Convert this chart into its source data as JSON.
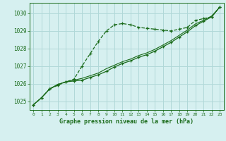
{
  "x": [
    0,
    1,
    2,
    3,
    4,
    5,
    6,
    7,
    8,
    9,
    10,
    11,
    12,
    13,
    14,
    15,
    16,
    17,
    18,
    19,
    20,
    21,
    22,
    23
  ],
  "series1": [
    1024.8,
    1025.2,
    1025.7,
    1025.9,
    1026.1,
    1026.25,
    1027.0,
    1027.7,
    1028.4,
    1029.0,
    1029.35,
    1029.42,
    1029.35,
    1029.2,
    1029.15,
    1029.1,
    1029.05,
    1029.0,
    1029.1,
    1029.2,
    1029.6,
    1029.7,
    1029.8,
    1030.35
  ],
  "series2": [
    1024.8,
    1025.2,
    1025.7,
    1025.95,
    1026.1,
    1026.15,
    1026.2,
    1026.35,
    1026.5,
    1026.7,
    1026.95,
    1027.15,
    1027.3,
    1027.5,
    1027.65,
    1027.85,
    1028.1,
    1028.35,
    1028.65,
    1028.95,
    1029.3,
    1029.55,
    1029.8,
    1030.35
  ],
  "series3": [
    1024.8,
    1025.2,
    1025.7,
    1025.95,
    1026.1,
    1026.2,
    1026.3,
    1026.45,
    1026.6,
    1026.85,
    1027.05,
    1027.25,
    1027.4,
    1027.6,
    1027.75,
    1027.95,
    1028.2,
    1028.45,
    1028.75,
    1029.05,
    1029.4,
    1029.6,
    1029.85,
    1030.35
  ],
  "bg_color": "#d6f0f0",
  "grid_color": "#b0d8d8",
  "line_color": "#1a6b1a",
  "xlabel": "Graphe pression niveau de la mer (hPa)",
  "ylim_min": 1024.5,
  "ylim_max": 1030.6,
  "xlim_min": -0.5,
  "xlim_max": 23.5,
  "yticks": [
    1025,
    1026,
    1027,
    1028,
    1029,
    1030
  ],
  "xticks": [
    0,
    1,
    2,
    3,
    4,
    5,
    6,
    7,
    8,
    9,
    10,
    11,
    12,
    13,
    14,
    15,
    16,
    17,
    18,
    19,
    20,
    21,
    22,
    23
  ]
}
